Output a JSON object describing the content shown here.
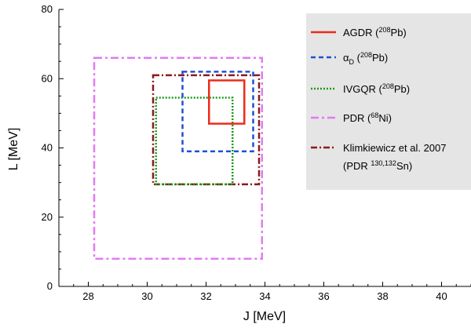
{
  "chart_data": {
    "type": "rectangle-regions",
    "xlabel": "J [MeV]",
    "ylabel": "L [MeV]",
    "xlim": [
      27,
      41
    ],
    "ylim": [
      0,
      80
    ],
    "xticks": [
      28,
      30,
      32,
      34,
      36,
      38,
      40
    ],
    "yticks": [
      0,
      20,
      40,
      60,
      80
    ],
    "xtick_labels": [
      "28",
      "30",
      "32",
      "34",
      "36",
      "38",
      "40"
    ],
    "ytick_labels": [
      "0",
      "20",
      "40",
      "60",
      "80"
    ],
    "grid": false,
    "legend_position": "top-right",
    "series": [
      {
        "id": "pdr",
        "legend": [
          "PDR  (",
          "68",
          "Ni)"
        ],
        "legend_line2": "",
        "color": "#e07cf0",
        "dash": "10,4,3,4",
        "width": 2.5,
        "x": [
          28.2,
          33.9
        ],
        "y": [
          8,
          66
        ]
      },
      {
        "id": "klimkiewicz",
        "legend": [
          "Klimkiewicz et al. 2007",
          "",
          ""
        ],
        "legend_line2": [
          "(PDR ",
          "130,132",
          "Sn)"
        ],
        "color": "#8b1a1a",
        "dash": "8,3,2,3",
        "width": 2.5,
        "x": [
          30.2,
          33.8
        ],
        "y": [
          29.5,
          61
        ]
      },
      {
        "id": "ivgqr",
        "legend": [
          "IVGQR  (",
          "208",
          "Pb)"
        ],
        "legend_line2": "",
        "color": "#1a9a1a",
        "dash": "2,2",
        "width": 2.5,
        "x": [
          30.3,
          32.9
        ],
        "y": [
          29.5,
          54.5
        ]
      },
      {
        "id": "alphad",
        "legend": [
          "α",
          "D",
          "  (208Pb)"
        ],
        "legend_line2": "",
        "color": "#1f4fd6",
        "dash": "6,4",
        "width": 2.5,
        "x": [
          31.2,
          33.6
        ],
        "y": [
          39,
          62
        ]
      },
      {
        "id": "agdr",
        "legend": [
          "AGDR  (",
          "208",
          "Pb)"
        ],
        "legend_line2": "",
        "color": "#ee2b1b",
        "dash": "",
        "width": 2.5,
        "x": [
          32.1,
          33.3
        ],
        "y": [
          47,
          59.5
        ]
      }
    ],
    "legend_order": [
      "agdr",
      "alphad",
      "ivgqr",
      "pdr",
      "klimkiewicz"
    ]
  }
}
